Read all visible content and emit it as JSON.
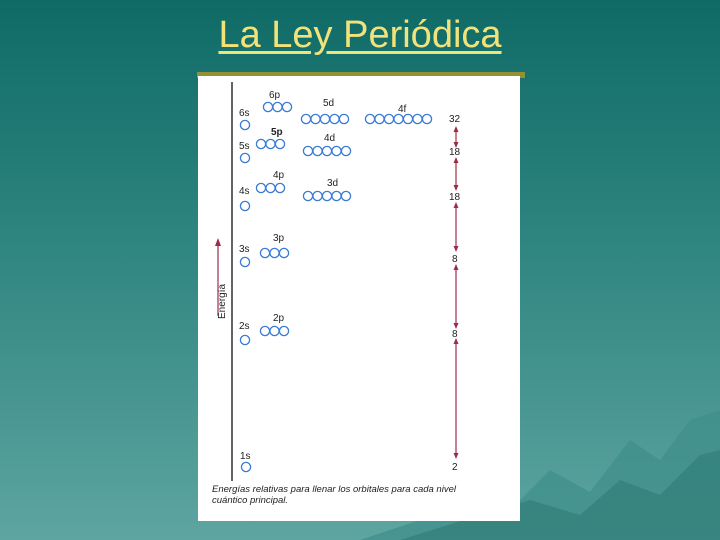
{
  "slide": {
    "title": "La Ley Periódica"
  },
  "diagram": {
    "axis_label": "Energía",
    "caption_line1": "Energías relativas para llenar los orbitales para cada nivel",
    "caption_line2": "cuántico principal.",
    "orbitals": [
      {
        "id": "1s",
        "label": "1s",
        "count": 1
      },
      {
        "id": "2s",
        "label": "2s",
        "count": 1
      },
      {
        "id": "2p",
        "label": "2p",
        "count": 3
      },
      {
        "id": "3s",
        "label": "3s",
        "count": 1
      },
      {
        "id": "3p",
        "label": "3p",
        "count": 3
      },
      {
        "id": "4s",
        "label": "4s",
        "count": 1
      },
      {
        "id": "4p",
        "label": "4p",
        "count": 3
      },
      {
        "id": "3d",
        "label": "3d",
        "count": 5
      },
      {
        "id": "5s",
        "label": "5s",
        "count": 1
      },
      {
        "id": "5p",
        "label": "5p",
        "count": 3
      },
      {
        "id": "4d",
        "label": "4d",
        "count": 5
      },
      {
        "id": "6s",
        "label": "6s",
        "count": 1
      },
      {
        "id": "6p",
        "label": "6p",
        "count": 3
      },
      {
        "id": "5d",
        "label": "5d",
        "count": 5
      },
      {
        "id": "4f",
        "label": "4f",
        "count": 7
      }
    ],
    "capacities": [
      {
        "id": "c2",
        "value": "2"
      },
      {
        "id": "c8a",
        "value": "8"
      },
      {
        "id": "c8b",
        "value": "8"
      },
      {
        "id": "c18a",
        "value": "18"
      },
      {
        "id": "c18b",
        "value": "18"
      },
      {
        "id": "c32",
        "value": "32"
      }
    ],
    "colors": {
      "orbital": "#3a7bd5",
      "arrow": "#9b2d4a",
      "axis": "#111111"
    }
  }
}
